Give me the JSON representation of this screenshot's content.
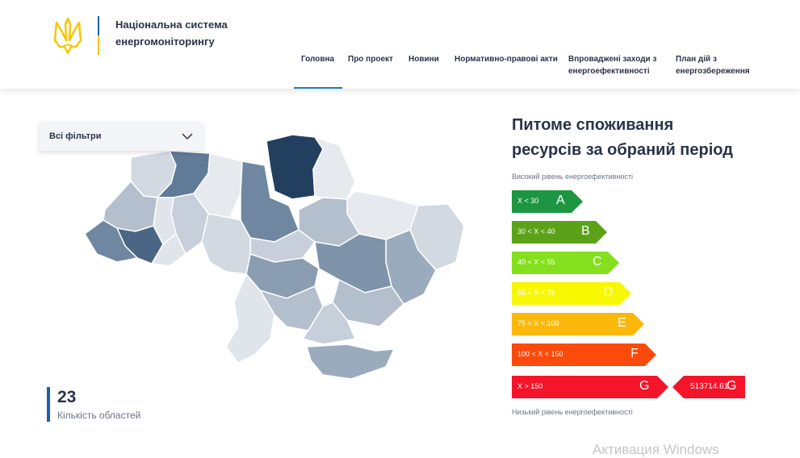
{
  "header": {
    "title_line1": "Національна система",
    "title_line2": "енергомоніторингу"
  },
  "nav": {
    "items": [
      {
        "line1": "Головна",
        "line2": ""
      },
      {
        "line1": "Про проект",
        "line2": ""
      },
      {
        "line1": "Новини",
        "line2": ""
      },
      {
        "line1": "Нормативно-правові акти",
        "line2": ""
      },
      {
        "line1": "Впроваджені заходи з",
        "line2": "енергоефективності"
      },
      {
        "line1": "План дій з",
        "line2": "енергозбереження"
      }
    ],
    "active_index": 0
  },
  "filter": {
    "label": "Всі фільтри",
    "icon": "chevron-down-icon"
  },
  "map": {
    "label": "Ukraine oblast map"
  },
  "stats": {
    "count": "23",
    "count_label": "Кількість областей"
  },
  "panel": {
    "title_line1": "Питоме споживання",
    "title_line2": "ресурсів за обраний період",
    "high_label": "Високий рівень енергоефективності",
    "low_label": "Низький рівень енергоефективності"
  },
  "energy_scale": [
    {
      "range": "X < 30",
      "letter": "A",
      "color": "#1e9641"
    },
    {
      "range": "30 < X < 40",
      "letter": "B",
      "color": "#5ba219"
    },
    {
      "range": "40 < X < 55",
      "letter": "C",
      "color": "#84e01e"
    },
    {
      "range": "55 < X < 75",
      "letter": "D",
      "color": "#f7f700"
    },
    {
      "range": "75 < X < 100",
      "letter": "E",
      "color": "#fbb80a"
    },
    {
      "range": "100 < X < 150",
      "letter": "F",
      "color": "#fc4a0c"
    },
    {
      "range": "X > 150",
      "letter": "G",
      "color": "#f4152b"
    }
  ],
  "result": {
    "value": "513714.61",
    "letter": "G",
    "color": "#f4152b"
  },
  "watermark": "Активация Windows"
}
